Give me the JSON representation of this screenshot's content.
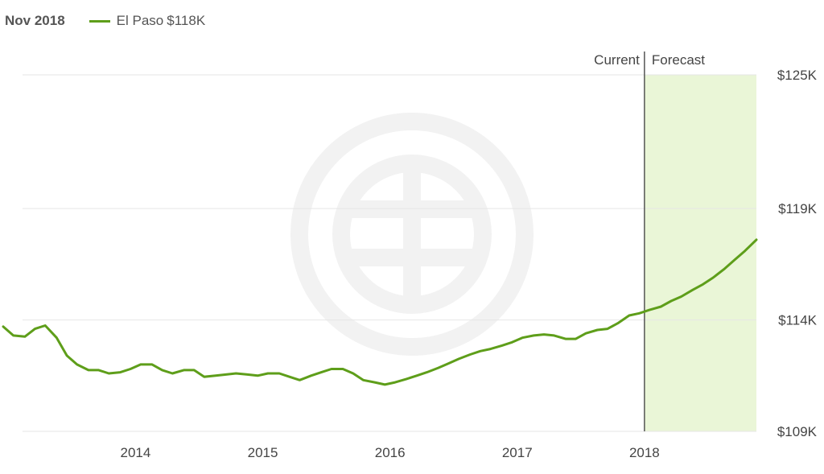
{
  "legend": {
    "date": "Nov 2018",
    "series_name": "El Paso",
    "series_value": "$118K"
  },
  "regions": {
    "current_label": "Current",
    "forecast_label": "Forecast"
  },
  "colors": {
    "line": "#5e9e1a",
    "forecast_fill": "#eaf6d7",
    "gridline": "#e6e6e6",
    "divider": "#555555"
  },
  "chart_data": {
    "type": "line",
    "title": "",
    "xlabel": "",
    "ylabel": "",
    "ylim": [
      109,
      125
    ],
    "y_ticks": [
      {
        "value": 109,
        "label": "$109K"
      },
      {
        "value": 114,
        "label": "$114K"
      },
      {
        "value": 119,
        "label": "$119K"
      },
      {
        "value": 125,
        "label": "$125K"
      }
    ],
    "x_ticks": [
      {
        "value": 2014.0,
        "label": "2014"
      },
      {
        "value": 2015.0,
        "label": "2015"
      },
      {
        "value": 2016.0,
        "label": "2016"
      },
      {
        "value": 2017.0,
        "label": "2017"
      },
      {
        "value": 2018.0,
        "label": "2018"
      }
    ],
    "xlim": [
      2012.96,
      2018.88
    ],
    "forecast_start": 2018.0,
    "grid": true,
    "series": [
      {
        "name": "El Paso",
        "x": [
          2012.96,
          2013.04,
          2013.13,
          2013.21,
          2013.29,
          2013.38,
          2013.46,
          2013.54,
          2013.63,
          2013.71,
          2013.79,
          2013.88,
          2013.96,
          2014.04,
          2014.13,
          2014.21,
          2014.29,
          2014.38,
          2014.46,
          2014.54,
          2014.63,
          2014.71,
          2014.79,
          2014.88,
          2014.96,
          2015.04,
          2015.13,
          2015.21,
          2015.29,
          2015.38,
          2015.46,
          2015.54,
          2015.63,
          2015.71,
          2015.79,
          2015.88,
          2015.96,
          2016.04,
          2016.13,
          2016.21,
          2016.29,
          2016.38,
          2016.46,
          2016.54,
          2016.63,
          2016.71,
          2016.79,
          2016.88,
          2016.96,
          2017.04,
          2017.13,
          2017.21,
          2017.29,
          2017.38,
          2017.46,
          2017.54,
          2017.63,
          2017.71,
          2017.79,
          2017.88,
          2017.96,
          2018.04,
          2018.13,
          2018.21,
          2018.29,
          2018.38,
          2018.46,
          2018.54,
          2018.63,
          2018.71,
          2018.79,
          2018.88
        ],
        "values": [
          113.7,
          113.3,
          113.25,
          113.6,
          113.75,
          113.2,
          112.4,
          112.0,
          111.75,
          111.75,
          111.6,
          111.65,
          111.8,
          112.0,
          112.0,
          111.75,
          111.6,
          111.75,
          111.75,
          111.45,
          111.5,
          111.55,
          111.6,
          111.55,
          111.5,
          111.6,
          111.6,
          111.45,
          111.3,
          111.5,
          111.65,
          111.8,
          111.8,
          111.6,
          111.3,
          111.2,
          111.1,
          111.2,
          111.35,
          111.5,
          111.65,
          111.85,
          112.05,
          112.25,
          112.45,
          112.6,
          112.7,
          112.85,
          113.0,
          113.2,
          113.3,
          113.35,
          113.3,
          113.15,
          113.15,
          113.4,
          113.55,
          113.6,
          113.85,
          114.2,
          114.3,
          114.45,
          114.6,
          114.85,
          115.05,
          115.35,
          115.6,
          115.9,
          116.3,
          116.7,
          117.1,
          117.6
        ]
      }
    ]
  }
}
